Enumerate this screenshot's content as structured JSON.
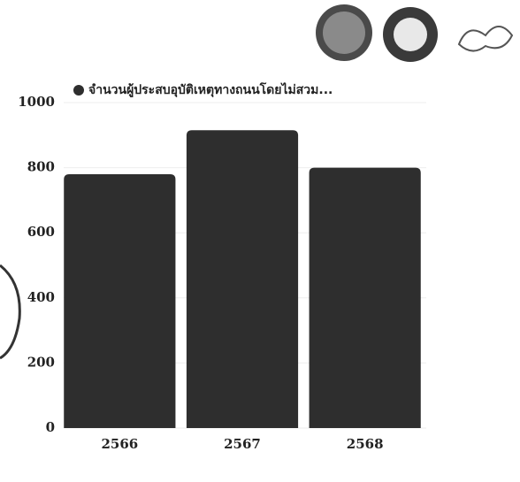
{
  "chart_data": {
    "type": "bar",
    "categories": [
      "2566",
      "2567",
      "2568"
    ],
    "series": [
      {
        "name": "จำนวนผู้ประสบอุบัติเหตุทางถนนโดยไม่สวม...",
        "color": "#2e2e2e",
        "values": [
          780,
          915,
          800
        ]
      }
    ],
    "ylim": [
      0,
      1000
    ],
    "yticks": [
      0,
      200,
      400,
      600,
      800,
      1000
    ],
    "grid": true
  }
}
